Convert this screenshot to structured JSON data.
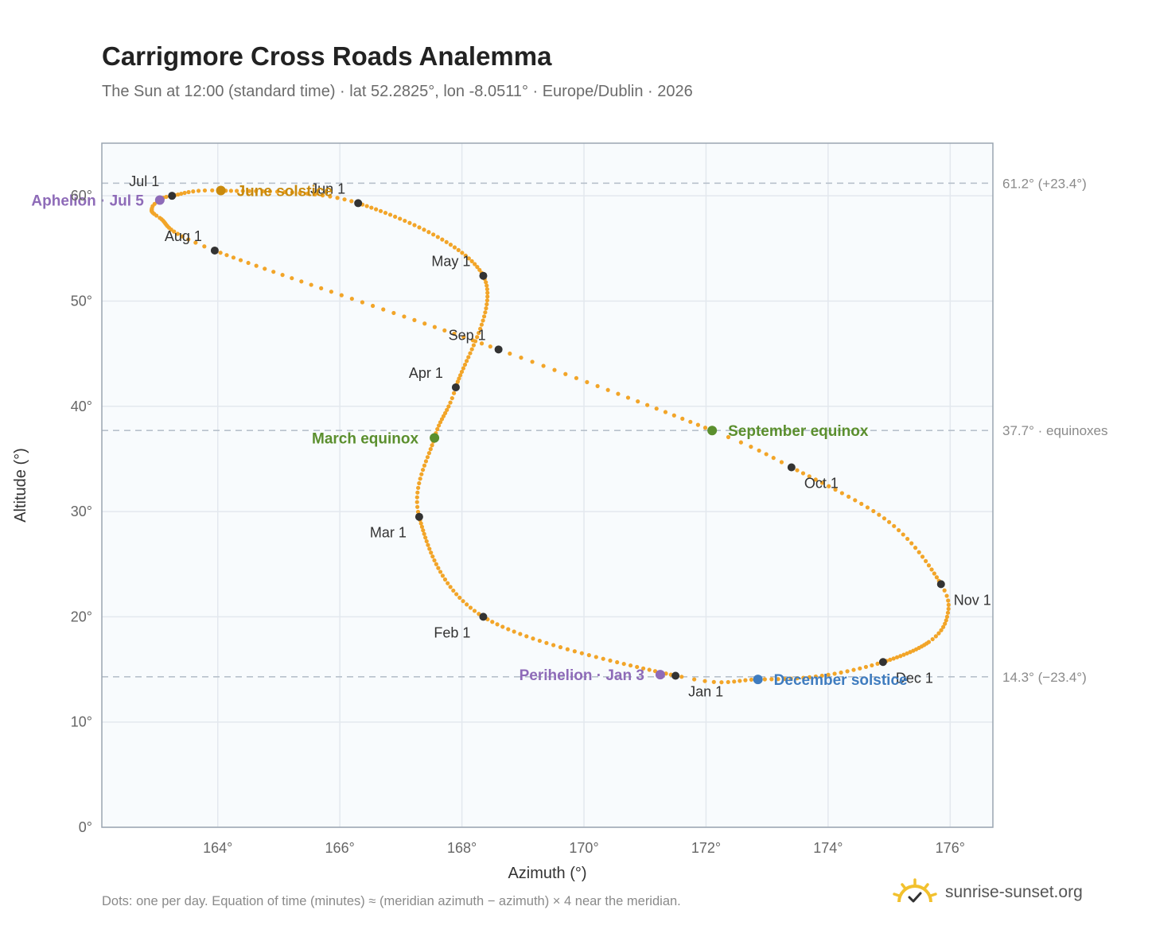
{
  "page": {
    "title": "Carrigmore Cross Roads Analemma",
    "subtitle": "The Sun at 12:00 (standard time) · lat 52.2825°, lon -8.0511° · Europe/Dublin · 2026",
    "footnote": "Dots: one per day. Equation of time (minutes) ≈ (meridian azimuth − azimuth) × 4 near the meridian.",
    "brand": "sunrise-sunset.org"
  },
  "colors": {
    "path": "#f2a529",
    "month_marker": "#333333",
    "june_solstice": "#c98a0d",
    "december_solstice": "#3f7cbf",
    "equinox": "#5b8f2e",
    "aphelion_perihelion": "#8e6bb8",
    "guide": "#b8c1cc",
    "plot_bg": "#f8fbfd",
    "grid": "#e3e8ee",
    "frame": "#9aa5b1"
  },
  "chart_data": {
    "type": "scatter",
    "title": "Carrigmore Cross Roads Analemma",
    "xlabel": "Azimuth (°)",
    "ylabel": "Altitude (°)",
    "xlim": [
      162.1,
      176.7
    ],
    "ylim": [
      0,
      65
    ],
    "x_ticks": [
      164,
      166,
      168,
      170,
      172,
      174,
      176
    ],
    "x_tick_labels": [
      "164°",
      "166°",
      "168°",
      "170°",
      "172°",
      "174°",
      "176°"
    ],
    "y_ticks": [
      0,
      10,
      20,
      30,
      40,
      50,
      60
    ],
    "y_tick_labels": [
      "0°",
      "10°",
      "20°",
      "30°",
      "40°",
      "50°",
      "60°"
    ],
    "grid": true,
    "path_keypoints": [
      {
        "day": 1,
        "az": 171.5,
        "alt": 14.4
      },
      {
        "day": 32,
        "az": 168.35,
        "alt": 20.0
      },
      {
        "day": 60,
        "az": 167.3,
        "alt": 29.5
      },
      {
        "day": 78,
        "az": 167.55,
        "alt": 37.0
      },
      {
        "day": 91,
        "az": 167.9,
        "alt": 41.8
      },
      {
        "day": 121,
        "az": 168.35,
        "alt": 52.4
      },
      {
        "day": 152,
        "az": 166.3,
        "alt": 59.3
      },
      {
        "day": 172,
        "az": 164.05,
        "alt": 60.5
      },
      {
        "day": 182,
        "az": 163.25,
        "alt": 60.0
      },
      {
        "day": 186,
        "az": 163.05,
        "alt": 59.6
      },
      {
        "day": 190,
        "az": 162.92,
        "alt": 58.8
      },
      {
        "day": 198,
        "az": 163.05,
        "alt": 57.9
      },
      {
        "day": 213,
        "az": 163.95,
        "alt": 54.8
      },
      {
        "day": 244,
        "az": 168.6,
        "alt": 45.4
      },
      {
        "day": 266,
        "az": 172.1,
        "alt": 37.7
      },
      {
        "day": 274,
        "az": 173.4,
        "alt": 34.2
      },
      {
        "day": 290,
        "az": 175.0,
        "alt": 29.0
      },
      {
        "day": 305,
        "az": 175.85,
        "alt": 23.1
      },
      {
        "day": 312,
        "az": 175.95,
        "alt": 20.0
      },
      {
        "day": 320,
        "az": 175.65,
        "alt": 17.6
      },
      {
        "day": 335,
        "az": 174.9,
        "alt": 15.7
      },
      {
        "day": 345,
        "az": 173.9,
        "alt": 14.4
      },
      {
        "day": 355,
        "az": 172.85,
        "alt": 14.05
      },
      {
        "day": 365,
        "az": 171.6,
        "alt": 14.3
      }
    ],
    "month_markers": [
      {
        "label": "Jan 1",
        "az": 171.5,
        "alt": 14.4,
        "anchor": "below-right"
      },
      {
        "label": "Feb 1",
        "az": 168.35,
        "alt": 20.0,
        "anchor": "below-left"
      },
      {
        "label": "Mar 1",
        "az": 167.3,
        "alt": 29.5,
        "anchor": "below-left"
      },
      {
        "label": "Apr 1",
        "az": 167.9,
        "alt": 41.8,
        "anchor": "above-left"
      },
      {
        "label": "May 1",
        "az": 168.35,
        "alt": 52.4,
        "anchor": "above-left"
      },
      {
        "label": "Jun 1",
        "az": 166.3,
        "alt": 59.3,
        "anchor": "above-left"
      },
      {
        "label": "Jul 1",
        "az": 163.25,
        "alt": 60.0,
        "anchor": "above-left"
      },
      {
        "label": "Aug 1",
        "az": 163.95,
        "alt": 54.8,
        "anchor": "above-left"
      },
      {
        "label": "Sep 1",
        "az": 168.6,
        "alt": 45.4,
        "anchor": "above-left"
      },
      {
        "label": "Oct 1",
        "az": 173.4,
        "alt": 34.2,
        "anchor": "below-right"
      },
      {
        "label": "Nov 1",
        "az": 175.85,
        "alt": 23.1,
        "anchor": "below-right"
      },
      {
        "label": "Dec 1",
        "az": 174.9,
        "alt": 15.7,
        "anchor": "below-right"
      }
    ],
    "events": [
      {
        "label": "June solstice",
        "az": 164.05,
        "alt": 60.5,
        "color": "#c98a0d",
        "side": "right"
      },
      {
        "label": "December solstice",
        "az": 172.85,
        "alt": 14.05,
        "color": "#3f7cbf",
        "side": "right"
      },
      {
        "label": "March equinox",
        "az": 167.55,
        "alt": 37.0,
        "color": "#5b8f2e",
        "side": "left"
      },
      {
        "label": "September equinox",
        "az": 172.1,
        "alt": 37.7,
        "color": "#5b8f2e",
        "side": "right"
      },
      {
        "label": "Aphelion · Jul 5",
        "az": 163.05,
        "alt": 59.6,
        "color": "#8e6bb8",
        "side": "left"
      },
      {
        "label": "Perihelion · Jan 3",
        "az": 171.25,
        "alt": 14.5,
        "color": "#8e6bb8",
        "side": "left"
      }
    ],
    "reference_lines": [
      {
        "alt": 61.2,
        "label": "61.2° (+23.4°)"
      },
      {
        "alt": 37.7,
        "label": "37.7° · equinoxes"
      },
      {
        "alt": 14.3,
        "label": "14.3° (−23.4°)"
      }
    ]
  }
}
